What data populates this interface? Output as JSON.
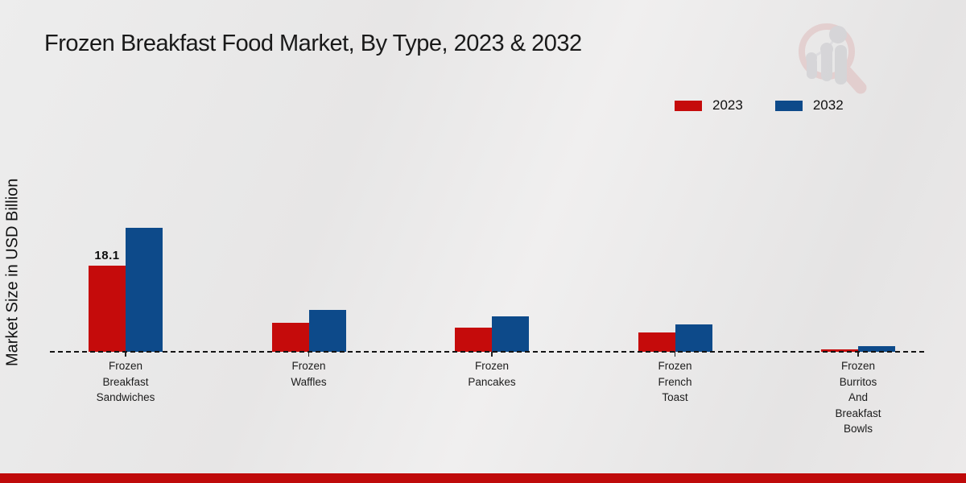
{
  "page": {
    "title": "Frozen Breakfast Food Market, By Type, 2023 & 2032"
  },
  "chart_data": {
    "type": "bar",
    "title": "Frozen Breakfast Food Market, By Type, 2023 & 2032",
    "ylabel": "Market Size in USD Billion",
    "xlabel": "",
    "grid": false,
    "legend_position": "top-right",
    "baseline_style": "dashed",
    "categories": [
      "Frozen Breakfast Sandwiches",
      "Frozen Waffles",
      "Frozen Pancakes",
      "Frozen French Toast",
      "Frozen Burritos And Breakfast Bowls"
    ],
    "category_label_lines": [
      [
        "Frozen",
        "Breakfast",
        "Sandwiches"
      ],
      [
        "Frozen",
        "Waffles"
      ],
      [
        "Frozen",
        "Pancakes"
      ],
      [
        "Frozen",
        "French",
        "Toast"
      ],
      [
        "Frozen",
        "Burritos",
        "And",
        "Breakfast",
        "Bowls"
      ]
    ],
    "series": [
      {
        "name": "2023",
        "color": "#c50b0b",
        "values": [
          18.1,
          6.1,
          5.1,
          4.0,
          0.5
        ]
      },
      {
        "name": "2032",
        "color": "#0d4a8a",
        "values": [
          26.0,
          8.8,
          7.5,
          5.7,
          1.2
        ]
      }
    ],
    "annotations": [
      {
        "text": "18.1",
        "series_index": 0,
        "category_index": 0
      }
    ]
  },
  "footer": {
    "bar_color": "#bf0a0a"
  },
  "watermark": {
    "icon": "magnifier-bar-chart-logo",
    "ring_color": "#dfbcbc",
    "bars_color": "#c7c7cb"
  }
}
